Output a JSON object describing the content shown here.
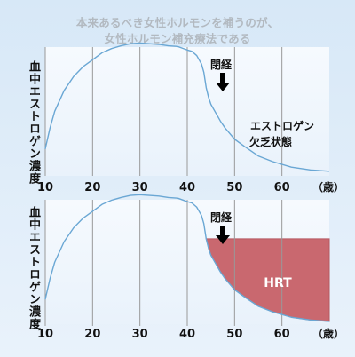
{
  "headline": {
    "line1": "本来あるべき女性ホルモンを補うのが、",
    "line2": "女性ホルモン補充療法である"
  },
  "colors": {
    "curve": "#6aa7d4",
    "gridline": "#999999",
    "hrt_fill": "#c9686f",
    "hrt_edge": "#b55a62"
  },
  "chart_data": [
    {
      "type": "line",
      "ylabel": "血中エストロゲン濃度",
      "x_unit": "（歳）",
      "xlim": [
        10,
        70
      ],
      "ylim": [
        0,
        1
      ],
      "xticks": [
        10,
        20,
        30,
        40,
        50,
        60
      ],
      "series": [
        {
          "x": [
            10,
            11,
            12,
            14,
            16,
            18,
            20,
            22,
            24,
            26,
            28,
            30,
            32,
            34,
            36,
            38,
            40,
            41,
            42,
            43,
            43.5,
            44,
            44.5,
            45,
            46,
            47,
            48,
            50,
            52,
            55,
            58,
            62,
            66,
            70
          ],
          "values": [
            0.18,
            0.33,
            0.45,
            0.6,
            0.7,
            0.77,
            0.82,
            0.87,
            0.9,
            0.92,
            0.935,
            0.94,
            0.935,
            0.93,
            0.92,
            0.915,
            0.89,
            0.88,
            0.85,
            0.79,
            0.73,
            0.62,
            0.55,
            0.5,
            0.44,
            0.38,
            0.33,
            0.25,
            0.2,
            0.13,
            0.09,
            0.05,
            0.03,
            0.02
          ]
        }
      ],
      "annotations": {
        "menopause_label": "閉経",
        "menopause_age": 47.5,
        "deficiency_line1": "エストロゲン",
        "deficiency_line2": "欠乏状態"
      }
    },
    {
      "type": "area",
      "ylabel": "血中エストロゲン濃度",
      "x_unit": "（歳）",
      "xlim": [
        10,
        70
      ],
      "ylim": [
        0,
        1
      ],
      "xticks": [
        10,
        20,
        30,
        40,
        50,
        60
      ],
      "series": [
        {
          "x": [
            10,
            11,
            12,
            14,
            16,
            18,
            20,
            22,
            24,
            26,
            28,
            30,
            32,
            34,
            36,
            38,
            40,
            41,
            42,
            43,
            43.5,
            44,
            44.5,
            45,
            46,
            47,
            48,
            50,
            52,
            55,
            58,
            62,
            66,
            70
          ],
          "values": [
            0.18,
            0.33,
            0.45,
            0.6,
            0.7,
            0.77,
            0.82,
            0.87,
            0.9,
            0.92,
            0.935,
            0.94,
            0.935,
            0.93,
            0.92,
            0.915,
            0.89,
            0.88,
            0.85,
            0.79,
            0.73,
            0.62,
            0.55,
            0.5,
            0.44,
            0.38,
            0.33,
            0.25,
            0.2,
            0.13,
            0.09,
            0.05,
            0.03,
            0.02
          ]
        }
      ],
      "hrt": {
        "label": "HRT",
        "start_age": 44,
        "level": 0.62
      },
      "annotations": {
        "menopause_label": "閉経",
        "menopause_age": 47.5
      }
    }
  ]
}
